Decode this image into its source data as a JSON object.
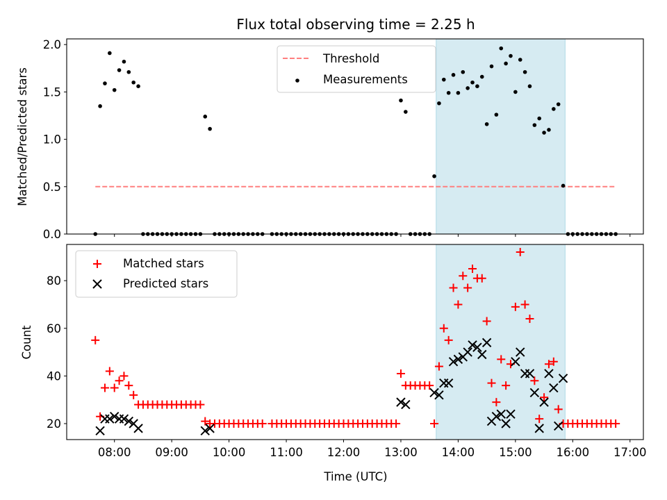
{
  "chart_data": [
    {
      "type": "scatter",
      "title": "Flux total observing time = 2.25 h",
      "xlabel": "",
      "ylabel": "Matched/Predicted stars",
      "xlim": [
        "07:10",
        "17:14"
      ],
      "ylim": [
        0,
        2.06
      ],
      "yticks": [
        "0.0",
        "0.5",
        "1.0",
        "1.5",
        "2.0"
      ],
      "ytick_values": [
        0,
        0.5,
        1.0,
        1.5,
        2.0
      ],
      "legend": {
        "placement": "top-center",
        "entries": [
          "Threshold",
          "Measurements"
        ]
      },
      "threshold": {
        "name": "Threshold",
        "value": 0.5,
        "from": "07:40",
        "to": "16:45",
        "color": "#ff7f7f"
      },
      "shaded_interval": {
        "from": "13:37",
        "to": "15:52",
        "color": "#add8e6"
      },
      "time_start": "07:40",
      "time_step_min": 5,
      "series": [
        {
          "name": "Measurements",
          "color": "#000000",
          "values": [
            0,
            1.35,
            1.59,
            1.91,
            1.52,
            1.73,
            1.82,
            1.71,
            1.6,
            1.56,
            0,
            0,
            0,
            0,
            0,
            0,
            0,
            0,
            0,
            0,
            0,
            0,
            0,
            1.24,
            1.11,
            0,
            0,
            0,
            0,
            0,
            0,
            0,
            0,
            0,
            0,
            0,
            null,
            0,
            0,
            0,
            0,
            0,
            0,
            0,
            0,
            0,
            0,
            0,
            0,
            0,
            0,
            0,
            0,
            0,
            0,
            0,
            0,
            0,
            0,
            0,
            0,
            0,
            0,
            0,
            1.41,
            1.29,
            0,
            0,
            0,
            0,
            0,
            0.61,
            1.38,
            1.63,
            1.49,
            1.68,
            1.49,
            1.71,
            1.54,
            1.6,
            1.56,
            1.66,
            1.16,
            1.77,
            1.26,
            1.96,
            1.8,
            1.88,
            1.5,
            1.84,
            1.71,
            1.56,
            1.15,
            1.22,
            1.07,
            1.1,
            1.32,
            1.37,
            0.51,
            0,
            0,
            0,
            0,
            0,
            0,
            0,
            0,
            0,
            0,
            0
          ]
        }
      ]
    },
    {
      "type": "scatter",
      "title": "",
      "xlabel": "Time (UTC)",
      "ylabel": "Count",
      "xlim": [
        "07:10",
        "17:14"
      ],
      "ylim": [
        13.3,
        95.2
      ],
      "xticks": [
        "08:00",
        "09:00",
        "10:00",
        "11:00",
        "12:00",
        "13:00",
        "14:00",
        "15:00",
        "16:00",
        "17:00"
      ],
      "yticks": [
        "20",
        "40",
        "60",
        "80"
      ],
      "ytick_values": [
        20,
        40,
        60,
        80
      ],
      "legend": {
        "placement": "top-left",
        "entries": [
          "Matched stars",
          "Predicted stars"
        ]
      },
      "shaded_interval": {
        "from": "13:37",
        "to": "15:52",
        "color": "#add8e6"
      },
      "time_start": "07:40",
      "time_step_min": 5,
      "series": [
        {
          "name": "Matched stars",
          "marker": "+",
          "color": "#ff0000",
          "values": [
            55,
            23,
            35,
            42,
            35,
            38,
            40,
            36,
            32,
            28,
            28,
            28,
            28,
            28,
            28,
            28,
            28,
            28,
            28,
            28,
            28,
            28,
            28,
            21,
            20,
            20,
            20,
            20,
            20,
            20,
            20,
            20,
            20,
            20,
            20,
            20,
            null,
            20,
            20,
            20,
            20,
            20,
            20,
            20,
            20,
            20,
            20,
            20,
            20,
            20,
            20,
            20,
            20,
            20,
            20,
            20,
            20,
            20,
            20,
            20,
            20,
            20,
            20,
            20,
            41,
            36,
            36,
            36,
            36,
            36,
            36,
            20,
            44,
            60,
            55,
            77,
            70,
            82,
            77,
            85,
            81,
            81,
            63,
            37,
            29,
            47,
            36,
            45,
            69,
            92,
            70,
            64,
            38,
            22,
            31,
            45,
            46,
            26,
            20,
            20,
            20,
            20,
            20,
            20,
            20,
            20,
            20,
            20,
            20,
            20
          ]
        },
        {
          "name": "Predicted stars",
          "marker": "x",
          "color": "#000000",
          "values": [
            null,
            17,
            22,
            22,
            23,
            22,
            22,
            21,
            20,
            18,
            null,
            null,
            null,
            null,
            null,
            null,
            null,
            null,
            null,
            null,
            null,
            null,
            null,
            17,
            18,
            null,
            null,
            null,
            null,
            null,
            null,
            null,
            null,
            null,
            null,
            null,
            null,
            null,
            null,
            null,
            null,
            null,
            null,
            null,
            null,
            null,
            null,
            null,
            null,
            null,
            null,
            null,
            null,
            null,
            null,
            null,
            null,
            null,
            null,
            null,
            null,
            null,
            null,
            null,
            29,
            28,
            null,
            null,
            null,
            null,
            null,
            33,
            32,
            37,
            37,
            46,
            47,
            48,
            50,
            53,
            52,
            49,
            54,
            21,
            23,
            24,
            20,
            24,
            46,
            50,
            41,
            41,
            33,
            18,
            29,
            41,
            35,
            19,
            39,
            null,
            null,
            null,
            null,
            null,
            null,
            null,
            null,
            null,
            null,
            null
          ]
        }
      ]
    }
  ]
}
